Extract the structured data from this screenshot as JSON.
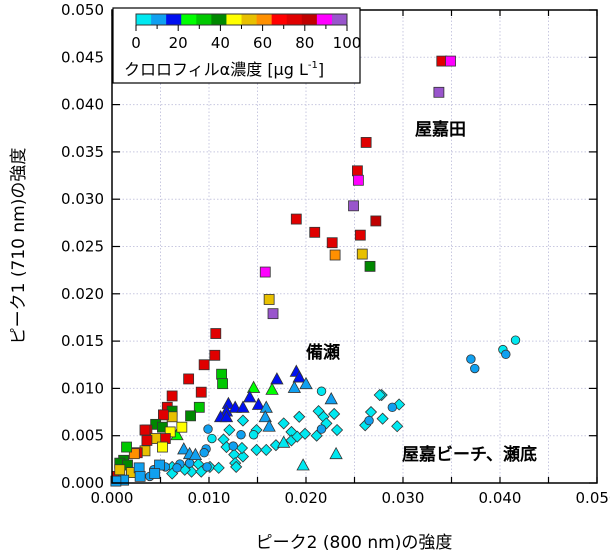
{
  "chart_data": {
    "type": "scatter",
    "xlabel": "ピーク2 (800 nm)の強度",
    "ylabel": "ピーク1 (710 nm)の強度",
    "xlim": [
      0,
      0.05
    ],
    "ylim": [
      0,
      0.05
    ],
    "xticks": [
      "0.000",
      "0.010",
      "0.020",
      "0.030",
      "0.040",
      "0.050"
    ],
    "yticks": [
      "0.000",
      "0.005",
      "0.010",
      "0.015",
      "0.020",
      "0.025",
      "0.030",
      "0.035",
      "0.040",
      "0.045",
      "0.050"
    ],
    "grid": true,
    "colorbar": {
      "title": "クロロフィルα濃度 [μg L",
      "title_superscript": "-1",
      "title_close": "]",
      "range": [
        0,
        100
      ],
      "ticks": [
        "0",
        "20",
        "40",
        "60",
        "80",
        "100"
      ],
      "colors": [
        "#00e8f0",
        "#10a0f0",
        "#0010f0",
        "#00ff00",
        "#00c800",
        "#008800",
        "#ffff00",
        "#e8c000",
        "#ff9000",
        "#ff0000",
        "#e00000",
        "#c00000",
        "#ff00ff",
        "#9955cc"
      ],
      "placement": "top-left"
    },
    "annotations": [
      "屋嘉田",
      "備瀬",
      "屋嘉ビーチ、瀬底"
    ],
    "series": [
      {
        "marker": "square",
        "label_ref": "屋嘉田",
        "points": [
          [
            0.0262,
            0.036,
            75
          ],
          [
            0.0253,
            0.033,
            75
          ],
          [
            0.0254,
            0.032,
            90
          ],
          [
            0.0249,
            0.0293,
            97
          ],
          [
            0.0272,
            0.0277,
            82
          ],
          [
            0.019,
            0.0279,
            75
          ],
          [
            0.0209,
            0.0265,
            75
          ],
          [
            0.0227,
            0.0254,
            75
          ],
          [
            0.0256,
            0.0262,
            75
          ],
          [
            0.023,
            0.0241,
            60
          ],
          [
            0.0258,
            0.0242,
            53
          ],
          [
            0.0266,
            0.0229,
            40
          ],
          [
            0.0158,
            0.0223,
            90
          ],
          [
            0.0162,
            0.0194,
            53
          ],
          [
            0.0166,
            0.0179,
            97
          ],
          [
            0.034,
            0.0446,
            75
          ],
          [
            0.0349,
            0.0446,
            90
          ],
          [
            0.0337,
            0.0413,
            97
          ],
          [
            0.0107,
            0.0158,
            75
          ],
          [
            0.0106,
            0.0135,
            75
          ],
          [
            0.0095,
            0.0125,
            75
          ],
          [
            0.0113,
            0.0115,
            32
          ],
          [
            0.0114,
            0.0105,
            32
          ],
          [
            0.0079,
            0.011,
            75
          ],
          [
            0.0092,
            0.0096,
            75
          ],
          [
            0.0062,
            0.0092,
            75
          ],
          [
            0.009,
            0.008,
            32
          ],
          [
            0.0081,
            0.0071,
            40
          ],
          [
            0.0057,
            0.008,
            75
          ],
          [
            0.0062,
            0.0076,
            40
          ],
          [
            0.0062,
            0.007,
            53
          ],
          [
            0.0053,
            0.0072,
            75
          ],
          [
            0.0045,
            0.0062,
            40
          ],
          [
            0.0052,
            0.0059,
            40
          ],
          [
            0.0072,
            0.0059,
            46
          ],
          [
            0.0036,
            0.0056,
            75
          ],
          [
            0.0034,
            0.0056,
            75
          ],
          [
            0.006,
            0.0054,
            46
          ],
          [
            0.0055,
            0.0047,
            75
          ],
          [
            0.0045,
            0.0047,
            53
          ],
          [
            0.0036,
            0.0045,
            75
          ],
          [
            0.0052,
            0.0038,
            46
          ],
          [
            0.0034,
            0.0034,
            53
          ],
          [
            0.0026,
            0.0032,
            75
          ],
          [
            0.0023,
            0.0031,
            60
          ],
          [
            0.0015,
            0.0038,
            32
          ],
          [
            0.0012,
            0.0024,
            40
          ],
          [
            0.0008,
            0.0021,
            40
          ],
          [
            0.0016,
            0.0019,
            40
          ],
          [
            0.0005,
            0.0007,
            75
          ],
          [
            0.002,
            0.0011,
            53
          ],
          [
            0.0008,
            0.0014,
            53
          ],
          [
            0.0028,
            0.0016,
            10
          ],
          [
            0.0029,
            0.0007,
            10
          ],
          [
            0.0049,
            0.0019,
            10
          ],
          [
            0.0044,
            0.001,
            10
          ],
          [
            0.0012,
            0.0003,
            10
          ],
          [
            0.0004,
            0.0002,
            10
          ]
        ]
      },
      {
        "marker": "triangle",
        "label_ref": "備瀬",
        "points": [
          [
            0.019,
            0.0118,
            17
          ],
          [
            0.0193,
            0.0112,
            17
          ],
          [
            0.02,
            0.0105,
            10
          ],
          [
            0.017,
            0.011,
            17
          ],
          [
            0.0146,
            0.0101,
            25
          ],
          [
            0.0165,
            0.0099,
            25
          ],
          [
            0.0188,
            0.0101,
            10
          ],
          [
            0.0142,
            0.0091,
            17
          ],
          [
            0.0151,
            0.0083,
            17
          ],
          [
            0.0159,
            0.008,
            10
          ],
          [
            0.012,
            0.0084,
            17
          ],
          [
            0.0127,
            0.008,
            17
          ],
          [
            0.0135,
            0.008,
            17
          ],
          [
            0.0118,
            0.0076,
            17
          ],
          [
            0.0112,
            0.007,
            17
          ],
          [
            0.0118,
            0.007,
            17
          ],
          [
            0.0158,
            0.007,
            10
          ],
          [
            0.0162,
            0.006,
            10
          ],
          [
            0.0226,
            0.0089,
            10
          ],
          [
            0.0067,
            0.0051,
            25
          ],
          [
            0.0074,
            0.0036,
            10
          ],
          [
            0.008,
            0.0031,
            10
          ],
          [
            0.0086,
            0.003,
            10
          ],
          [
            0.0177,
            0.0043,
            3
          ],
          [
            0.0231,
            0.0031,
            3
          ],
          [
            0.0197,
            0.0019,
            3
          ]
        ]
      },
      {
        "marker": "circle",
        "label_ref": "屋嘉ビーチ、瀬底",
        "points": [
          [
            0.037,
            0.0131,
            10
          ],
          [
            0.0374,
            0.0121,
            10
          ],
          [
            0.0403,
            0.0141,
            3
          ],
          [
            0.0406,
            0.0136,
            10
          ],
          [
            0.0416,
            0.0151,
            3
          ],
          [
            0.0289,
            0.008,
            10
          ],
          [
            0.0099,
            0.0057,
            10
          ],
          [
            0.0103,
            0.0047,
            3
          ],
          [
            0.0133,
            0.0051,
            10
          ],
          [
            0.0125,
            0.0039,
            10
          ],
          [
            0.0097,
            0.0036,
            10
          ],
          [
            0.0095,
            0.0032,
            10
          ],
          [
            0.0216,
            0.0097,
            3
          ],
          [
            0.0216,
            0.0057,
            10
          ],
          [
            0.0265,
            0.0066,
            10
          ],
          [
            0.0146,
            0.0051,
            3
          ],
          [
            0.0039,
            0.0007,
            10
          ],
          [
            0.0043,
            0.0014,
            10
          ],
          [
            0.0055,
            0.0017,
            10
          ],
          [
            0.007,
            0.002,
            10
          ],
          [
            0.008,
            0.0021,
            10
          ],
          [
            0.0098,
            0.0017,
            10
          ],
          [
            0.0067,
            0.0016,
            10
          ]
        ]
      },
      {
        "marker": "diamond",
        "label_ref": "屋嘉ビーチ、瀬底",
        "points": [
          [
            0.0296,
            0.0083,
            3
          ],
          [
            0.0278,
            0.0093,
            3
          ],
          [
            0.0279,
            0.0068,
            3
          ],
          [
            0.0294,
            0.006,
            3
          ],
          [
            0.0135,
            0.0066,
            3
          ],
          [
            0.0121,
            0.0056,
            3
          ],
          [
            0.0115,
            0.0046,
            3
          ],
          [
            0.0118,
            0.0038,
            3
          ],
          [
            0.0126,
            0.003,
            3
          ],
          [
            0.0135,
            0.0028,
            3
          ],
          [
            0.0134,
            0.0037,
            3
          ],
          [
            0.0127,
            0.0021,
            3
          ],
          [
            0.0128,
            0.0017,
            3
          ],
          [
            0.0149,
            0.0056,
            3
          ],
          [
            0.0149,
            0.0035,
            3
          ],
          [
            0.0159,
            0.0035,
            3
          ],
          [
            0.0169,
            0.004,
            3
          ],
          [
            0.0177,
            0.0063,
            3
          ],
          [
            0.0185,
            0.0054,
            3
          ],
          [
            0.0185,
            0.0045,
            3
          ],
          [
            0.0191,
            0.0049,
            3
          ],
          [
            0.0193,
            0.007,
            3
          ],
          [
            0.0199,
            0.0052,
            3
          ],
          [
            0.0211,
            0.005,
            3
          ],
          [
            0.0213,
            0.0076,
            3
          ],
          [
            0.0218,
            0.007,
            3
          ],
          [
            0.0221,
            0.0063,
            3
          ],
          [
            0.0229,
            0.0073,
            3
          ],
          [
            0.0232,
            0.0056,
            3
          ],
          [
            0.0276,
            0.0093,
            3
          ],
          [
            0.0267,
            0.0075,
            3
          ],
          [
            0.0261,
            0.0061,
            3
          ],
          [
            0.0089,
            0.002,
            3
          ],
          [
            0.0082,
            0.0012,
            3
          ],
          [
            0.0092,
            0.0012,
            3
          ],
          [
            0.0101,
            0.0017,
            3
          ],
          [
            0.011,
            0.0016,
            3
          ],
          [
            0.0062,
            0.0017,
            3
          ],
          [
            0.0062,
            0.001,
            3
          ],
          [
            0.0075,
            0.0014,
            3
          ]
        ]
      }
    ]
  }
}
